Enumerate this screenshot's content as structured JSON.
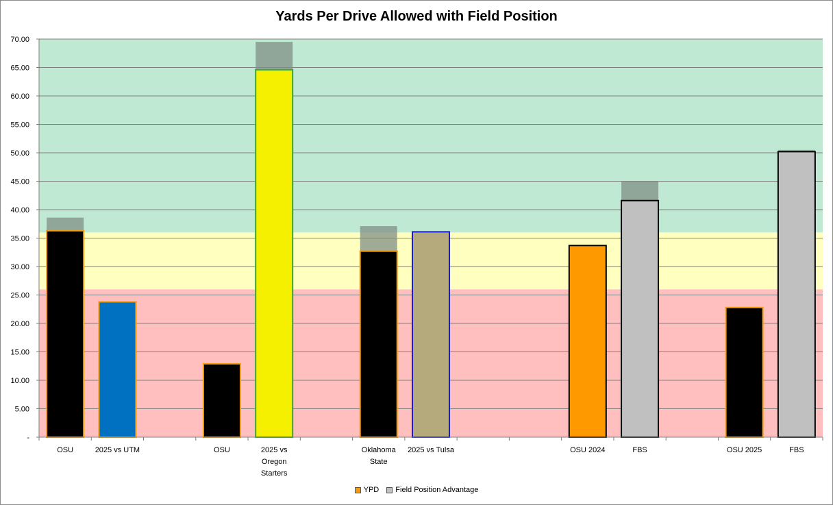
{
  "chart_data": {
    "type": "bar",
    "title": "Yards Per Drive Allowed with Field Position",
    "xlabel": "",
    "ylabel": "",
    "ylim": [
      0,
      70
    ],
    "y_ticks": [
      {
        "value": 0,
        "label": "-"
      },
      {
        "value": 5,
        "label": "5.00"
      },
      {
        "value": 10,
        "label": "10.00"
      },
      {
        "value": 15,
        "label": "15.00"
      },
      {
        "value": 20,
        "label": "20.00"
      },
      {
        "value": 25,
        "label": "25.00"
      },
      {
        "value": 30,
        "label": "30.00"
      },
      {
        "value": 35,
        "label": "35.00"
      },
      {
        "value": 40,
        "label": "40.00"
      },
      {
        "value": 45,
        "label": "45.00"
      },
      {
        "value": 50,
        "label": "50.00"
      },
      {
        "value": 55,
        "label": "55.00"
      },
      {
        "value": 60,
        "label": "60.00"
      },
      {
        "value": 65,
        "label": "65.00"
      },
      {
        "value": 70,
        "label": "70.00"
      }
    ],
    "grid": true,
    "bands": [
      {
        "from": 0,
        "to": 26,
        "color": "#ffbfbf"
      },
      {
        "from": 26,
        "to": 36,
        "color": "#ffffc0"
      },
      {
        "from": 36,
        "to": 70,
        "color": "#c0e9d4"
      }
    ],
    "slot_count": 15,
    "categories": [
      {
        "slot": 0,
        "label": [
          "OSU"
        ],
        "ypd": 36.3,
        "advantage": 2.3,
        "fill": "#000000",
        "stroke": "#f39c12"
      },
      {
        "slot": 1,
        "label": [
          "2025 vs UTM"
        ],
        "ypd": 23.8,
        "advantage": 0,
        "fill": "#0070c0",
        "stroke": "#f39c12"
      },
      {
        "slot": 3,
        "label": [
          "OSU"
        ],
        "ypd": 12.9,
        "advantage": 0,
        "fill": "#000000",
        "stroke": "#f39c12"
      },
      {
        "slot": 4,
        "label": [
          "2025 vs",
          "Oregon",
          "Starters"
        ],
        "ypd": 64.6,
        "advantage": 4.9,
        "fill": "#f5ef00",
        "stroke": "#3aa53a"
      },
      {
        "slot": 6,
        "label": [
          "Oklahoma",
          "State"
        ],
        "ypd": 32.7,
        "advantage": 4.4,
        "fill": "#000000",
        "stroke": "#f39c12"
      },
      {
        "slot": 7,
        "label": [
          "2025 vs Tulsa"
        ],
        "ypd": 36.1,
        "advantage": 0,
        "fill": "#b5aa7c",
        "stroke": "#1a1adb"
      },
      {
        "slot": 10,
        "label": [
          "OSU 2024"
        ],
        "ypd": 33.7,
        "advantage": 0,
        "fill": "#ff9900",
        "stroke": "#000000"
      },
      {
        "slot": 11,
        "label": [
          "FBS"
        ],
        "ypd": 41.6,
        "advantage": 3.4,
        "fill": "#c0c0c0",
        "stroke": "#000000"
      },
      {
        "slot": 13,
        "label": [
          "OSU 2025"
        ],
        "ypd": 22.8,
        "advantage": 0,
        "fill": "#000000",
        "stroke": "#f39c12"
      },
      {
        "slot": 14,
        "label": [
          "FBS"
        ],
        "ypd": 50.2,
        "advantage": 0.3,
        "fill": "#c0c0c0",
        "stroke": "#000000"
      }
    ],
    "series": [
      {
        "name": "YPD",
        "color": "#f39c12"
      },
      {
        "name": "Field Position Advantage",
        "color": "#c0c0c0"
      }
    ],
    "legend_position": "bottom"
  }
}
